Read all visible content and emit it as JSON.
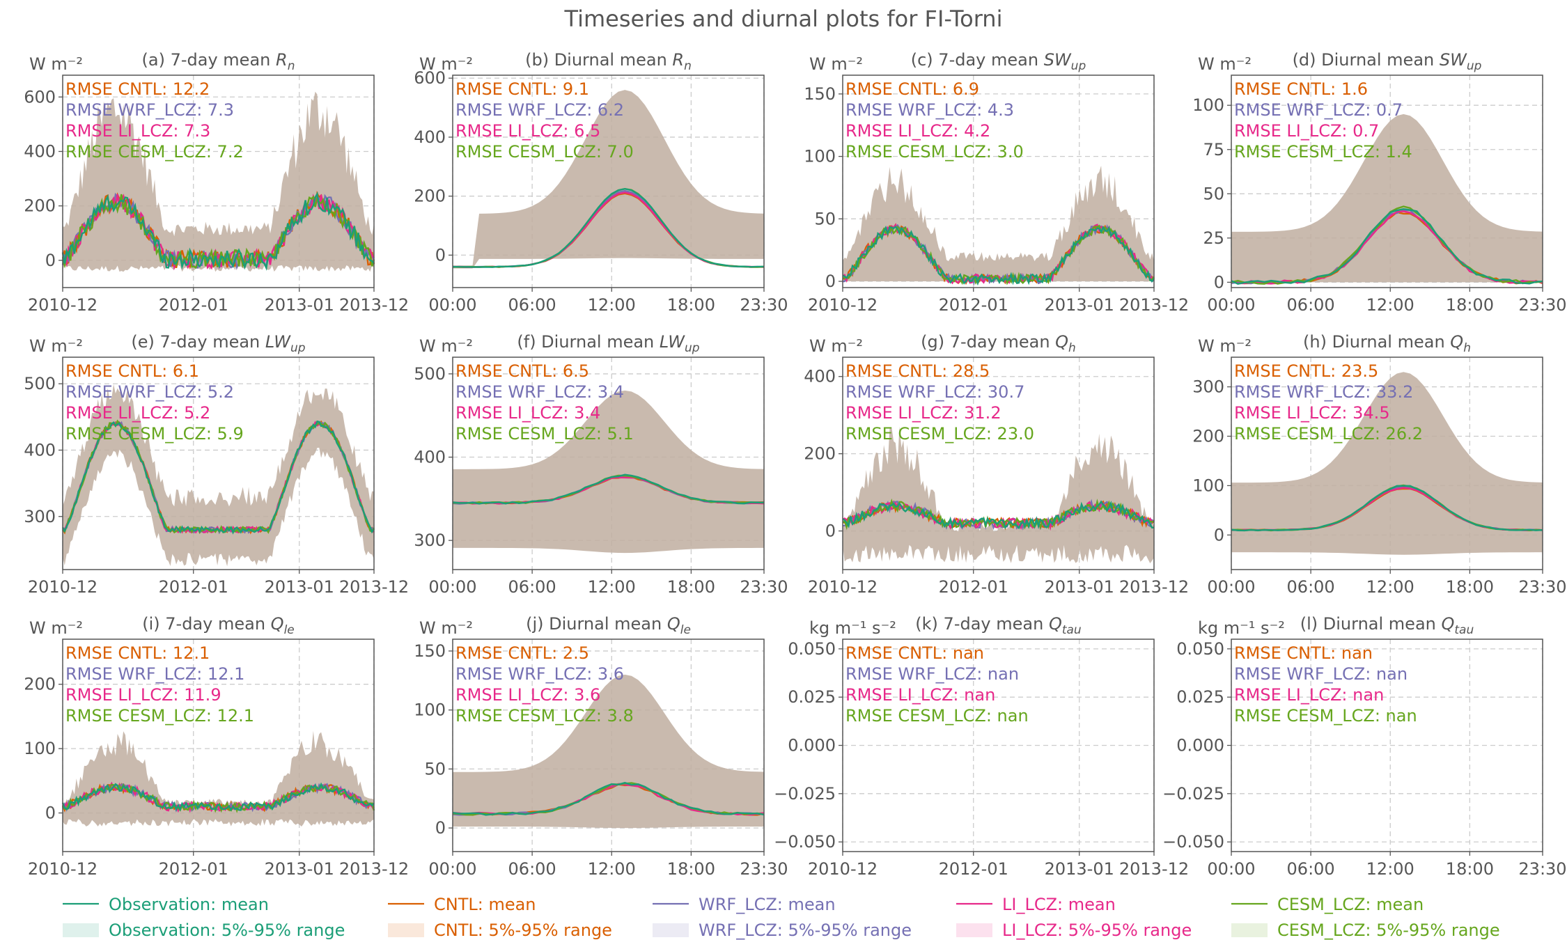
{
  "title": "Timeseries and diurnal plots for FI-Torni",
  "colors": {
    "Observation": "#1b9e77",
    "CNTL": "#d95f02",
    "WRF_LCZ": "#7570b3",
    "LI_LCZ": "#e7298a",
    "CESM_LCZ": "#66a61e"
  },
  "legend": {
    "items": [
      {
        "key": "Observation",
        "mean": "Observation: mean",
        "range": "Observation: 5%-95% range"
      },
      {
        "key": "CNTL",
        "mean": "CNTL: mean",
        "range": "CNTL: 5%-95% range"
      },
      {
        "key": "WRF_LCZ",
        "mean": "WRF_LCZ: mean",
        "range": "WRF_LCZ: 5%-95% range"
      },
      {
        "key": "LI_LCZ",
        "mean": "LI_LCZ: mean",
        "range": "LI_LCZ: 5%-95% range"
      },
      {
        "key": "CESM_LCZ",
        "mean": "CESM_LCZ: mean",
        "range": "CESM_LCZ: 5%-95% range"
      }
    ]
  },
  "rmse_labels": [
    "RMSE CNTL: ",
    "RMSE WRF_LCZ: ",
    "RMSE LI_LCZ: ",
    "RMSE CESM_LCZ: "
  ],
  "x_ticks": {
    "timeseries": [
      "2010-12",
      "2012-01",
      "2013-01",
      "2013-12"
    ],
    "diurnal": [
      "00:00",
      "06:00",
      "12:00",
      "18:00",
      "23:30"
    ]
  },
  "chart_data": [
    {
      "id": "a",
      "type": "line",
      "kind": "timeseries",
      "title": "(a) 7-day mean",
      "var": "R",
      "sub": "n",
      "ylabel": "W m⁻²",
      "ylim": [
        -100,
        680
      ],
      "yticks": [
        0,
        200,
        400,
        600
      ],
      "rmse": [
        "12.2",
        "7.3",
        "7.3",
        "7.2"
      ],
      "amp": 210,
      "base": 5,
      "lo": -30,
      "hi": 600,
      "spread": 0.9
    },
    {
      "id": "b",
      "type": "line",
      "kind": "diurnal",
      "title": "(b) Diurnal mean",
      "var": "R",
      "sub": "n",
      "ylabel": "W m⁻²",
      "ylim": [
        -110,
        610
      ],
      "yticks": [
        0,
        200,
        400,
        600
      ],
      "rmse": [
        "9.1",
        "6.2",
        "6.5",
        "7.0"
      ],
      "night": -40,
      "peak": 225,
      "lo": -10,
      "hi": 560,
      "gap": true
    },
    {
      "id": "c",
      "type": "line",
      "kind": "timeseries",
      "title": "(c) 7-day mean",
      "var": "SW",
      "sub": "up",
      "ylabel": "W m⁻²",
      "ylim": [
        -5,
        165
      ],
      "yticks": [
        0,
        50,
        100,
        150
      ],
      "rmse": [
        "6.9",
        "4.3",
        "4.2",
        "3.0"
      ],
      "amp": 40,
      "base": 2,
      "lo": 0,
      "hi": 85,
      "spread": 0.5
    },
    {
      "id": "d",
      "type": "line",
      "kind": "diurnal",
      "title": "(d) Diurnal mean",
      "var": "SW",
      "sub": "up",
      "ylabel": "W m⁻²",
      "ylim": [
        -3,
        117
      ],
      "yticks": [
        0,
        25,
        50,
        75,
        100
      ],
      "rmse": [
        "1.6",
        "0.7",
        "0.7",
        "1.4"
      ],
      "night": 0,
      "peak": 42,
      "lo": 0,
      "hi": 95
    },
    {
      "id": "e",
      "type": "line",
      "kind": "timeseries",
      "title": "(e) 7-day mean",
      "var": "LW",
      "sub": "up",
      "ylabel": "W m⁻²",
      "ylim": [
        220,
        540
      ],
      "yticks": [
        300,
        400,
        500
      ],
      "rmse": [
        "6.1",
        "5.2",
        "5.2",
        "5.9"
      ],
      "amp": 160,
      "base": 280,
      "lo": 0,
      "hi": 0,
      "spread": 0.15
    },
    {
      "id": "f",
      "type": "line",
      "kind": "diurnal",
      "title": "(f) Diurnal mean",
      "var": "LW",
      "sub": "up",
      "ylabel": "W m⁻²",
      "ylim": [
        265,
        520
      ],
      "yticks": [
        300,
        400,
        500
      ],
      "rmse": [
        "6.5",
        "3.4",
        "3.4",
        "5.1"
      ],
      "night": 345,
      "peak": 378,
      "lo": 285,
      "hi": 480
    },
    {
      "id": "g",
      "type": "line",
      "kind": "timeseries",
      "title": "(g) 7-day mean",
      "var": "Q",
      "sub": "h",
      "ylabel": "W m⁻²",
      "ylim": [
        -100,
        450
      ],
      "yticks": [
        0,
        200,
        400
      ],
      "rmse": [
        "28.5",
        "30.7",
        "31.2",
        "23.0"
      ],
      "amp": 45,
      "base": 20,
      "lo": -60,
      "hi": 250,
      "spread": 1.6
    },
    {
      "id": "h",
      "type": "line",
      "kind": "diurnal",
      "title": "(h) Diurnal mean",
      "var": "Q",
      "sub": "h",
      "ylabel": "W m⁻²",
      "ylim": [
        -70,
        360
      ],
      "yticks": [
        0,
        100,
        200,
        300
      ],
      "rmse": [
        "23.5",
        "33.2",
        "34.5",
        "26.2"
      ],
      "night": 10,
      "peak": 100,
      "lo": -40,
      "hi": 330
    },
    {
      "id": "i",
      "type": "line",
      "kind": "timeseries",
      "title": "(i) 7-day mean",
      "var": "Q",
      "sub": "le",
      "ylabel": "W m⁻²",
      "ylim": [
        -60,
        270
      ],
      "yticks": [
        0,
        100,
        200
      ],
      "rmse": [
        "12.1",
        "12.1",
        "11.9",
        "12.1"
      ],
      "amp": 30,
      "base": 10,
      "lo": -15,
      "hi": 120,
      "spread": 1.2
    },
    {
      "id": "j",
      "type": "line",
      "kind": "diurnal",
      "title": "(j) Diurnal mean",
      "var": "Q",
      "sub": "le",
      "ylabel": "W m⁻²",
      "ylim": [
        -20,
        160
      ],
      "yticks": [
        0,
        50,
        100,
        150
      ],
      "rmse": [
        "2.5",
        "3.6",
        "3.6",
        "3.8"
      ],
      "night": 12,
      "peak": 38,
      "lo": 0,
      "hi": 130
    },
    {
      "id": "k",
      "type": "line",
      "kind": "timeseries",
      "title": "(k) 7-day mean",
      "var": "Q",
      "sub": "tau",
      "ylabel": "kg m⁻¹ s⁻²",
      "ylim": [
        -0.055,
        0.055
      ],
      "yticks": [
        -0.05,
        -0.025,
        0,
        0.025,
        0.05
      ],
      "rmse": [
        "nan",
        "nan",
        "nan",
        "nan"
      ],
      "empty": true
    },
    {
      "id": "l",
      "type": "line",
      "kind": "diurnal",
      "title": "(l) Diurnal mean",
      "var": "Q",
      "sub": "tau",
      "ylabel": "kg m⁻¹ s⁻²",
      "ylim": [
        -0.055,
        0.055
      ],
      "yticks": [
        -0.05,
        -0.025,
        0,
        0.025,
        0.05
      ],
      "rmse": [
        "nan",
        "nan",
        "nan",
        "nan"
      ],
      "empty": true
    }
  ]
}
